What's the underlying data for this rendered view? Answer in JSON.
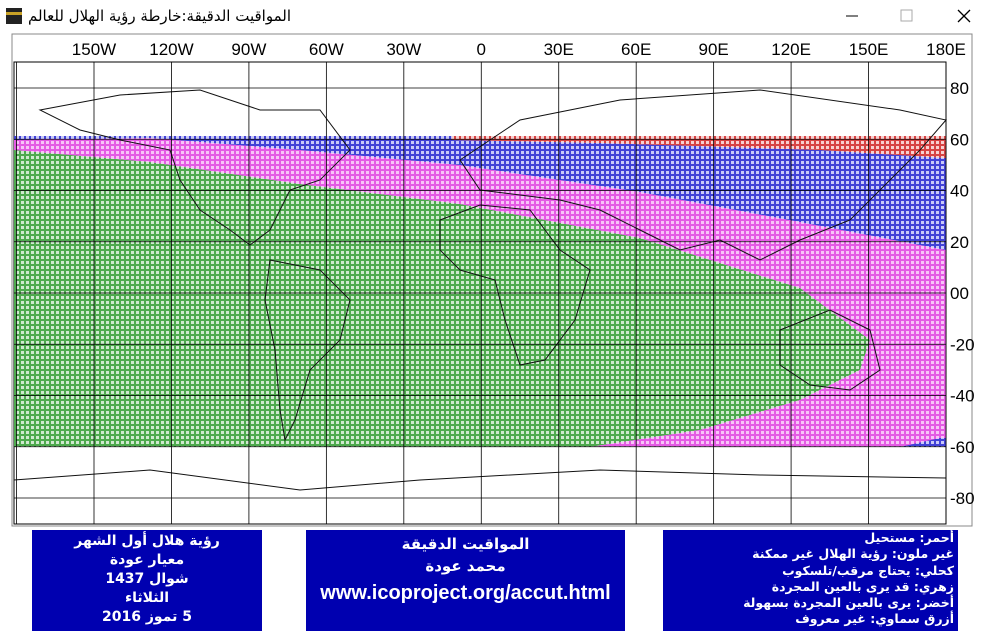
{
  "window": {
    "title": "المواقيت الدقيقة:خارطة رؤية الهلال للعالم"
  },
  "map": {
    "x_labels": [
      "150W",
      "120W",
      "90W",
      "60W",
      "30W",
      "0",
      "30E",
      "60E",
      "90E",
      "120E",
      "150E",
      "180E"
    ],
    "y_labels": [
      "80",
      "60",
      "40",
      "20",
      "00",
      "-20",
      "-40",
      "-60",
      "-80"
    ]
  },
  "info_box": {
    "lines": [
      "رؤية هلال أول الشهر",
      "معيار عودة",
      "شوال 1437",
      "الثلاثاء",
      "5 تموز 2016"
    ]
  },
  "author_box": {
    "lines": [
      "المواقيت الدقيقة",
      "محمد عودة",
      "www.icoproject.org/accut.html"
    ]
  },
  "legend": {
    "lines": [
      "أحمر: مستحيل",
      "غير ملون: رؤية الهلال غير ممكنة",
      "كحلي: يحتاج مرقب/تلسكوب",
      "زهري: قد يرى بالعين المجردة",
      "أخضر: يرى بالعين المجردة بسهولة",
      "أزرق سماوي: غير معروف"
    ]
  }
}
